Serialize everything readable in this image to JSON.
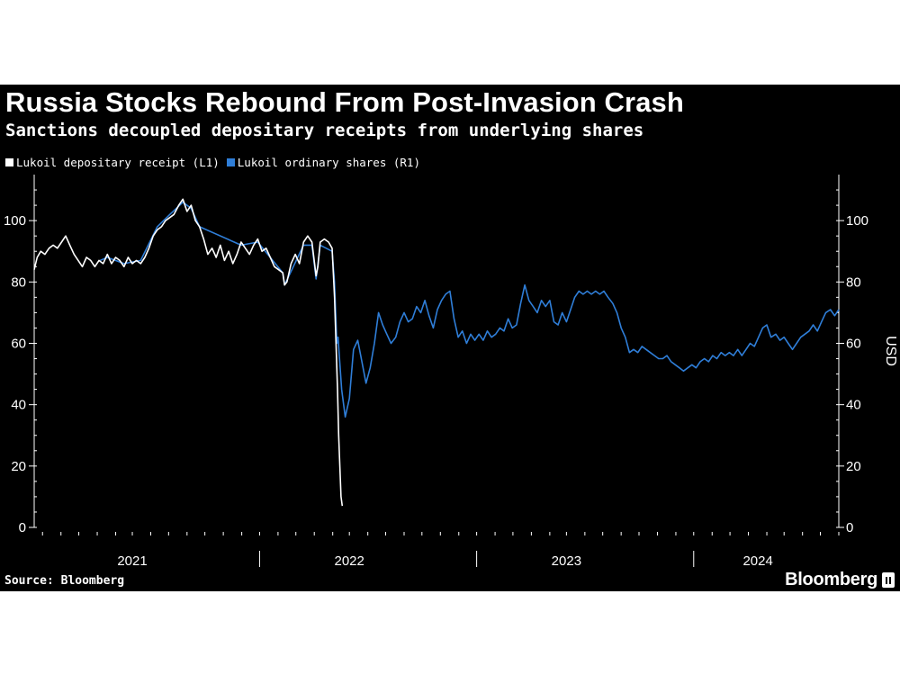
{
  "colors": {
    "background": "#000000",
    "text": "#ffffff",
    "axis": "#ffffff",
    "dr_line": "#ffffff",
    "ord_line": "#2f7ed8"
  },
  "source": "Source: Bloomberg",
  "brand": "Bloomberg",
  "brand_icon": "bar-chart-icon",
  "chart_data": {
    "type": "line",
    "title": "Russia Stocks Rebound From Post-Invasion Crash",
    "subtitle": "Sanctions decoupled depositary receipts from underlying shares",
    "ylabel_right": "USD",
    "ylim": [
      0,
      115
    ],
    "xlim": [
      "2020-10-01",
      "2024-06-15"
    ],
    "yticks": [
      0,
      20,
      40,
      60,
      80,
      100
    ],
    "ytick_labels": [
      "0",
      "20",
      "40",
      "60",
      "80",
      "100"
    ],
    "year_labels": [
      {
        "label": "2021",
        "date": "2021-03-15"
      },
      {
        "label": "2022",
        "date": "2022-03-15"
      },
      {
        "label": "2023",
        "date": "2023-03-15"
      },
      {
        "label": "2024",
        "date": "2024-01-31"
      }
    ],
    "year_dividers": [
      "2021-10-15",
      "2022-10-15",
      "2023-10-15"
    ],
    "grid": false,
    "legend_position": "top-left",
    "series": [
      {
        "name": "Lukoil depositary receipt (L1)",
        "color": "#ffffff",
        "axis": "left",
        "points": [
          [
            "2020-10-01",
            84
          ],
          [
            "2020-10-06",
            88
          ],
          [
            "2020-10-12",
            90
          ],
          [
            "2020-10-19",
            89
          ],
          [
            "2020-10-26",
            91
          ],
          [
            "2020-11-02",
            92
          ],
          [
            "2020-11-09",
            91
          ],
          [
            "2020-11-16",
            93
          ],
          [
            "2020-11-23",
            95
          ],
          [
            "2020-11-30",
            92
          ],
          [
            "2020-12-07",
            89
          ],
          [
            "2020-12-14",
            87
          ],
          [
            "2020-12-21",
            85
          ],
          [
            "2020-12-28",
            88
          ],
          [
            "2021-01-04",
            87
          ],
          [
            "2021-01-11",
            85
          ],
          [
            "2021-01-18",
            87
          ],
          [
            "2021-01-25",
            86
          ],
          [
            "2021-02-01",
            89
          ],
          [
            "2021-02-08",
            86
          ],
          [
            "2021-02-15",
            88
          ],
          [
            "2021-02-22",
            87
          ],
          [
            "2021-03-01",
            85
          ],
          [
            "2021-03-08",
            88
          ],
          [
            "2021-03-15",
            86
          ],
          [
            "2021-03-22",
            87
          ],
          [
            "2021-03-29",
            86
          ],
          [
            "2021-04-05",
            88
          ],
          [
            "2021-04-12",
            91
          ],
          [
            "2021-04-19",
            95
          ],
          [
            "2021-04-26",
            97
          ],
          [
            "2021-05-03",
            98
          ],
          [
            "2021-05-10",
            100
          ],
          [
            "2021-05-17",
            101
          ],
          [
            "2021-05-24",
            102
          ],
          [
            "2021-06-01",
            105
          ],
          [
            "2021-06-08",
            107
          ],
          [
            "2021-06-15",
            103
          ],
          [
            "2021-06-22",
            105
          ],
          [
            "2021-06-29",
            100
          ],
          [
            "2021-07-06",
            98
          ],
          [
            "2021-07-13",
            94
          ],
          [
            "2021-07-20",
            89
          ],
          [
            "2021-07-27",
            91
          ],
          [
            "2021-08-03",
            88
          ],
          [
            "2021-08-10",
            92
          ],
          [
            "2021-08-17",
            87
          ],
          [
            "2021-08-24",
            90
          ],
          [
            "2021-08-31",
            86
          ],
          [
            "2021-09-07",
            89
          ],
          [
            "2021-09-14",
            93
          ],
          [
            "2021-09-21",
            91
          ],
          [
            "2021-09-28",
            89
          ],
          [
            "2021-10-05",
            92
          ],
          [
            "2021-10-12",
            94
          ],
          [
            "2021-10-19",
            90
          ],
          [
            "2021-10-26",
            91
          ],
          [
            "2021-11-02",
            88
          ],
          [
            "2021-11-09",
            85
          ],
          [
            "2021-11-16",
            84
          ],
          [
            "2021-11-23",
            83
          ],
          [
            "2021-11-26",
            79
          ],
          [
            "2021-11-30",
            80
          ],
          [
            "2021-12-07",
            86
          ],
          [
            "2021-12-14",
            89
          ],
          [
            "2021-12-21",
            86
          ],
          [
            "2021-12-28",
            93
          ],
          [
            "2022-01-04",
            95
          ],
          [
            "2022-01-11",
            93
          ],
          [
            "2022-01-18",
            82
          ],
          [
            "2022-01-21",
            85
          ],
          [
            "2022-01-25",
            93
          ],
          [
            "2022-02-01",
            94
          ],
          [
            "2022-02-08",
            93
          ],
          [
            "2022-02-14",
            91
          ],
          [
            "2022-02-18",
            75
          ],
          [
            "2022-02-23",
            45
          ],
          [
            "2022-02-25",
            30
          ],
          [
            "2022-03-01",
            10
          ],
          [
            "2022-03-03",
            7
          ]
        ]
      },
      {
        "name": "Lukoil ordinary shares (R1)",
        "color": "#2f7ed8",
        "axis": "right",
        "points": [
          [
            "2021-01-20",
            87
          ],
          [
            "2021-02-01",
            88
          ],
          [
            "2021-03-01",
            86
          ],
          [
            "2021-03-29",
            87
          ],
          [
            "2021-04-26",
            98
          ],
          [
            "2021-05-17",
            102
          ],
          [
            "2021-06-08",
            106
          ],
          [
            "2021-06-22",
            104
          ],
          [
            "2021-07-06",
            98
          ],
          [
            "2021-09-14",
            92
          ],
          [
            "2021-10-12",
            93
          ],
          [
            "2021-11-23",
            83
          ],
          [
            "2021-11-26",
            79
          ],
          [
            "2021-12-28",
            92
          ],
          [
            "2022-01-11",
            92
          ],
          [
            "2022-01-18",
            81
          ],
          [
            "2022-01-25",
            92
          ],
          [
            "2022-02-14",
            90
          ],
          [
            "2022-02-18",
            80
          ],
          [
            "2022-02-22",
            60
          ],
          [
            "2022-02-24",
            62
          ],
          [
            "2022-03-02",
            45
          ],
          [
            "2022-03-08",
            36
          ],
          [
            "2022-03-15",
            42
          ],
          [
            "2022-03-22",
            58
          ],
          [
            "2022-03-29",
            61
          ],
          [
            "2022-04-05",
            54
          ],
          [
            "2022-04-12",
            47
          ],
          [
            "2022-04-19",
            52
          ],
          [
            "2022-04-26",
            60
          ],
          [
            "2022-05-03",
            70
          ],
          [
            "2022-05-10",
            66
          ],
          [
            "2022-05-17",
            63
          ],
          [
            "2022-05-24",
            60
          ],
          [
            "2022-06-01",
            62
          ],
          [
            "2022-06-08",
            67
          ],
          [
            "2022-06-15",
            70
          ],
          [
            "2022-06-22",
            67
          ],
          [
            "2022-06-29",
            68
          ],
          [
            "2022-07-06",
            72
          ],
          [
            "2022-07-13",
            70
          ],
          [
            "2022-07-20",
            74
          ],
          [
            "2022-07-27",
            69
          ],
          [
            "2022-08-03",
            65
          ],
          [
            "2022-08-10",
            71
          ],
          [
            "2022-08-17",
            74
          ],
          [
            "2022-08-24",
            76
          ],
          [
            "2022-08-31",
            77
          ],
          [
            "2022-09-07",
            68
          ],
          [
            "2022-09-14",
            62
          ],
          [
            "2022-09-21",
            64
          ],
          [
            "2022-09-28",
            60
          ],
          [
            "2022-10-05",
            63
          ],
          [
            "2022-10-12",
            61
          ],
          [
            "2022-10-19",
            63
          ],
          [
            "2022-10-26",
            61
          ],
          [
            "2022-11-02",
            64
          ],
          [
            "2022-11-09",
            62
          ],
          [
            "2022-11-16",
            63
          ],
          [
            "2022-11-23",
            65
          ],
          [
            "2022-11-30",
            64
          ],
          [
            "2022-12-07",
            68
          ],
          [
            "2022-12-14",
            65
          ],
          [
            "2022-12-21",
            66
          ],
          [
            "2022-12-28",
            73
          ],
          [
            "2023-01-04",
            79
          ],
          [
            "2023-01-11",
            74
          ],
          [
            "2023-01-18",
            72
          ],
          [
            "2023-01-25",
            70
          ],
          [
            "2023-02-01",
            74
          ],
          [
            "2023-02-08",
            72
          ],
          [
            "2023-02-15",
            74
          ],
          [
            "2023-02-22",
            67
          ],
          [
            "2023-03-01",
            66
          ],
          [
            "2023-03-08",
            70
          ],
          [
            "2023-03-15",
            67
          ],
          [
            "2023-03-22",
            71
          ],
          [
            "2023-03-29",
            75
          ],
          [
            "2023-04-05",
            77
          ],
          [
            "2023-04-12",
            76
          ],
          [
            "2023-04-19",
            77
          ],
          [
            "2023-04-26",
            76
          ],
          [
            "2023-05-03",
            77
          ],
          [
            "2023-05-10",
            76
          ],
          [
            "2023-05-17",
            77
          ],
          [
            "2023-05-24",
            75
          ],
          [
            "2023-06-01",
            73
          ],
          [
            "2023-06-08",
            70
          ],
          [
            "2023-06-15",
            65
          ],
          [
            "2023-06-22",
            62
          ],
          [
            "2023-06-29",
            57
          ],
          [
            "2023-07-06",
            58
          ],
          [
            "2023-07-13",
            57
          ],
          [
            "2023-07-20",
            59
          ],
          [
            "2023-07-27",
            58
          ],
          [
            "2023-08-03",
            57
          ],
          [
            "2023-08-10",
            56
          ],
          [
            "2023-08-17",
            55
          ],
          [
            "2023-08-24",
            55
          ],
          [
            "2023-08-31",
            56
          ],
          [
            "2023-09-07",
            54
          ],
          [
            "2023-09-14",
            53
          ],
          [
            "2023-09-21",
            52
          ],
          [
            "2023-09-28",
            51
          ],
          [
            "2023-10-05",
            52
          ],
          [
            "2023-10-12",
            53
          ],
          [
            "2023-10-19",
            52
          ],
          [
            "2023-10-26",
            54
          ],
          [
            "2023-11-02",
            55
          ],
          [
            "2023-11-09",
            54
          ],
          [
            "2023-11-16",
            56
          ],
          [
            "2023-11-23",
            55
          ],
          [
            "2023-11-30",
            57
          ],
          [
            "2023-12-07",
            56
          ],
          [
            "2023-12-14",
            57
          ],
          [
            "2023-12-21",
            56
          ],
          [
            "2023-12-28",
            58
          ],
          [
            "2024-01-04",
            56
          ],
          [
            "2024-01-11",
            58
          ],
          [
            "2024-01-18",
            60
          ],
          [
            "2024-01-25",
            59
          ],
          [
            "2024-02-01",
            62
          ],
          [
            "2024-02-08",
            65
          ],
          [
            "2024-02-15",
            66
          ],
          [
            "2024-02-22",
            62
          ],
          [
            "2024-03-01",
            63
          ],
          [
            "2024-03-08",
            61
          ],
          [
            "2024-03-15",
            62
          ],
          [
            "2024-03-22",
            60
          ],
          [
            "2024-03-29",
            58
          ],
          [
            "2024-04-05",
            60
          ],
          [
            "2024-04-12",
            62
          ],
          [
            "2024-04-19",
            63
          ],
          [
            "2024-04-26",
            64
          ],
          [
            "2024-05-03",
            66
          ],
          [
            "2024-05-10",
            64
          ],
          [
            "2024-05-17",
            67
          ],
          [
            "2024-05-24",
            70
          ],
          [
            "2024-06-01",
            71
          ],
          [
            "2024-06-08",
            69
          ],
          [
            "2024-06-15",
            71
          ]
        ]
      }
    ]
  }
}
